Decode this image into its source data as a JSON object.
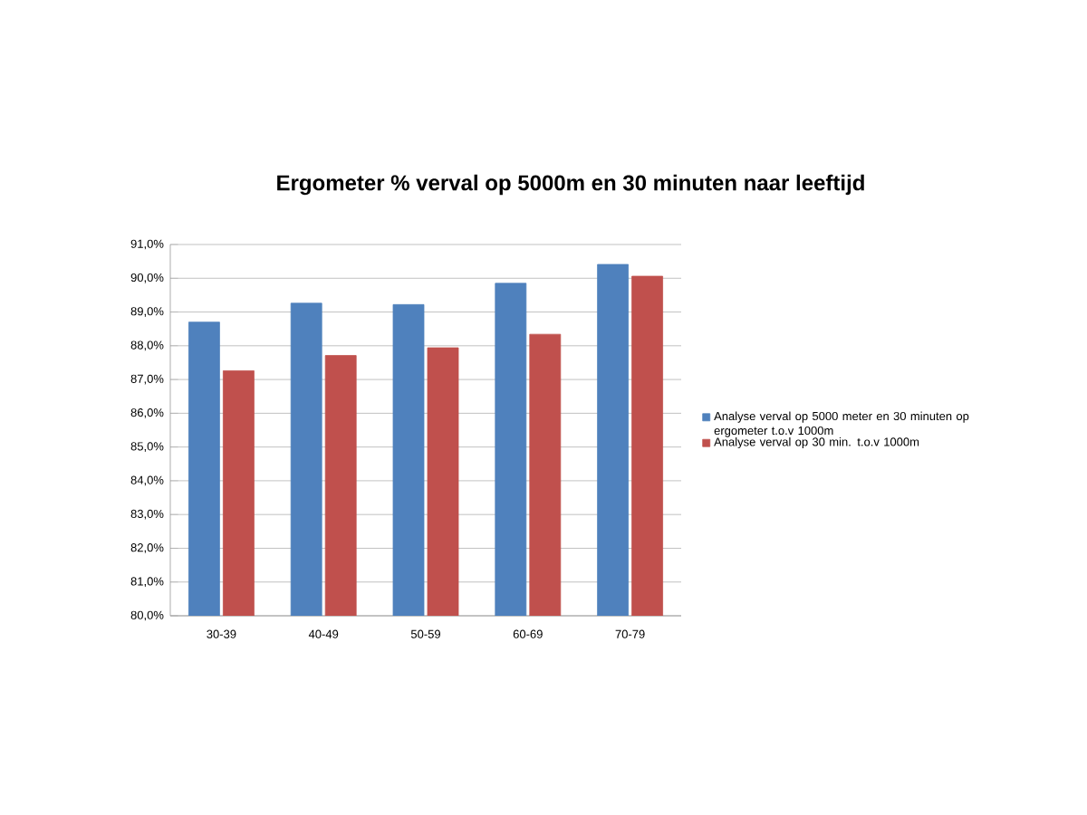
{
  "chart_data": {
    "type": "bar",
    "title": "Ergometer % verval op 5000m en 30 minuten naar leeftijd",
    "categories": [
      "30-39",
      "40-49",
      "50-59",
      "60-69",
      "70-79"
    ],
    "series": [
      {
        "name": "Analyse verval op 5000 meter en 30 minuten op ergometer t.o.v 1000m",
        "color": "#4f81bd",
        "values": [
          88.7,
          89.26,
          89.22,
          89.85,
          90.41
        ]
      },
      {
        "name": "Analyse verval op 30 min. t.o.v 1000m",
        "color": "#c0504d",
        "values": [
          87.26,
          87.71,
          87.94,
          88.34,
          90.06
        ]
      }
    ],
    "ylim": [
      80,
      91
    ],
    "yticks": [
      {
        "value": 80,
        "label": "80,0%"
      },
      {
        "value": 81,
        "label": "81,0%"
      },
      {
        "value": 82,
        "label": "82,0%"
      },
      {
        "value": 83,
        "label": "83,0%"
      },
      {
        "value": 84,
        "label": "84,0%"
      },
      {
        "value": 85,
        "label": "85,0%"
      },
      {
        "value": 86,
        "label": "86,0%"
      },
      {
        "value": 87,
        "label": "87,0%"
      },
      {
        "value": 88,
        "label": "88,0%"
      },
      {
        "value": 89,
        "label": "89,0%"
      },
      {
        "value": 90,
        "label": "90,0%"
      },
      {
        "value": 91,
        "label": "91,0%"
      }
    ],
    "grid": "y",
    "legend": "right"
  }
}
